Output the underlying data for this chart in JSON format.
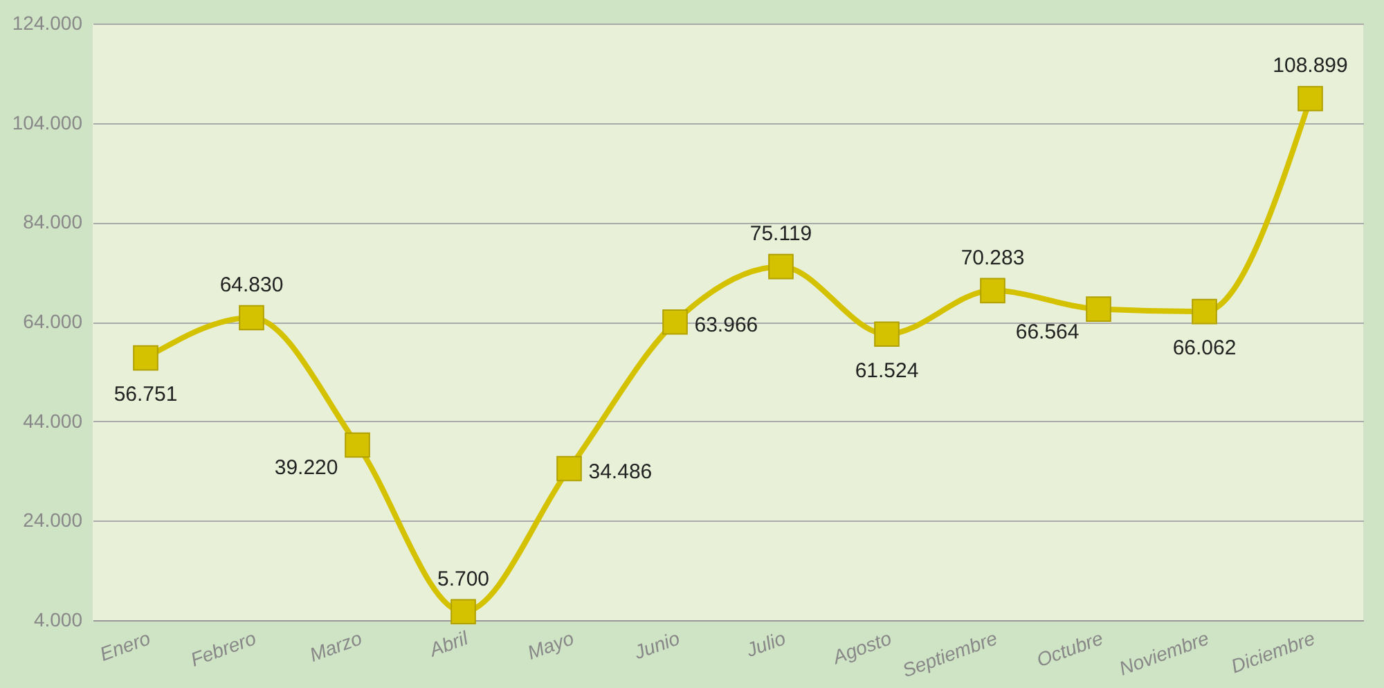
{
  "chart_data": {
    "type": "line",
    "categories": [
      "Enero",
      "Febrero",
      "Marzo",
      "Abril",
      "Mayo",
      "Junio",
      "Julio",
      "Agosto",
      "Septiembre",
      "Octubre",
      "Noviembre",
      "Diciembre"
    ],
    "values": [
      56751,
      64830,
      39220,
      5700,
      34486,
      63966,
      75119,
      61524,
      70283,
      66564,
      66062,
      108899
    ],
    "value_labels": [
      "56.751",
      "64.830",
      "39.220",
      "5.700",
      "34.486",
      "63.966",
      "75.119",
      "61.524",
      "70.283",
      "66.564",
      "66.062",
      "108.899"
    ],
    "color": "#d4c200",
    "ylim": [
      4000,
      124000
    ],
    "yticks": [
      {
        "value": 4000,
        "label": "4.000"
      },
      {
        "value": 24000,
        "label": "24.000"
      },
      {
        "value": 44000,
        "label": "44.000"
      },
      {
        "value": 64000,
        "label": "64.000"
      },
      {
        "value": 84000,
        "label": "84.000"
      },
      {
        "value": 104000,
        "label": "104.000"
      },
      {
        "value": 124000,
        "label": "124.000"
      }
    ],
    "grid": "y",
    "marker": "square",
    "line_style": "solid"
  }
}
